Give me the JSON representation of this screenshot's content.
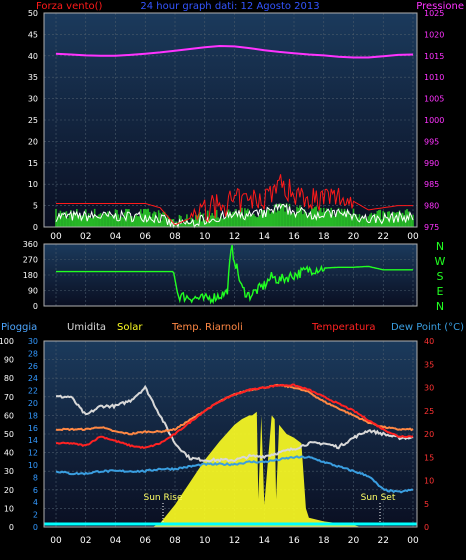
{
  "colors": {
    "background": "#000000",
    "plot_top": "#1b3a5c",
    "plot_bottom": "#0a0f22",
    "grid": "#4a5a6a",
    "border": "#b0b0b0",
    "wind": "#ff1a1a",
    "gust_bars": "#27b827",
    "wind_white": "#ffffff",
    "pressure": "#ff33ff",
    "direction": "#22ff22",
    "rain": "#00ffff",
    "humidity": "#d8d8d8",
    "solar": "#ffff22",
    "apparent_temp": "#ff8844",
    "temperature": "#ff2222",
    "dewpoint": "#3a9ee0",
    "top_title": "#3355ff",
    "tick_label": "#ffffff",
    "left_axis": "#4da6ff",
    "mid_axis": "#3399ff",
    "right_temp_axis": "#ff3333"
  },
  "top_panel": {
    "title": "24 hour graph dati: 12 Agosto 2013",
    "left_label": "Forza vento()",
    "right_label": "Pressione",
    "left_ticks": [
      "50",
      "45",
      "40",
      "35",
      "30",
      "25",
      "20",
      "15",
      "10",
      "5",
      "0"
    ],
    "right_ticks": [
      "1025",
      "1020",
      "1015",
      "1010",
      "1005",
      "1000",
      "995",
      "990",
      "985",
      "980",
      "975"
    ]
  },
  "direction_panel": {
    "ticks": [
      "360",
      "270",
      "180",
      "90",
      "0"
    ],
    "compass": [
      "N",
      "W",
      "S",
      "E",
      "N"
    ]
  },
  "bottom_panel": {
    "legend": {
      "rain": "Pioggia",
      "humidity": "Umidita",
      "solar": "Solar",
      "apparent": "Temp. Riarnoli",
      "temperature": "Temperatura",
      "dewpoint": "Dew Point (°C)"
    },
    "left_ticks": [
      "100",
      "90",
      "80",
      "70",
      "60",
      "50",
      "40",
      "30",
      "20",
      "10",
      "0"
    ],
    "mid_ticks": [
      "30",
      "28",
      "26",
      "24",
      "22",
      "20",
      "18",
      "16",
      "14",
      "12",
      "10",
      "8",
      "6",
      "4",
      "2",
      "0"
    ],
    "right_ticks": [
      "40",
      "35",
      "30",
      "25",
      "20",
      "15",
      "10",
      "5",
      "0"
    ],
    "sunrise": "Sun Rise",
    "sunset": "Sun Set"
  },
  "time_ticks": [
    "00",
    "02",
    "04",
    "06",
    "08",
    "10",
    "12",
    "14",
    "16",
    "18",
    "20",
    "22",
    "00"
  ],
  "chart_data": [
    {
      "type": "line",
      "title": "24 hour graph dati: 12 Agosto 2013",
      "x_unit": "hour",
      "xlim": [
        0,
        24
      ],
      "ylim_left": [
        0,
        50
      ],
      "ylim_right": [
        975,
        1025
      ],
      "grid": true,
      "series": [
        {
          "name": "Pressione",
          "axis": "right",
          "x": [
            0,
            1,
            2,
            3,
            4,
            5,
            6,
            7,
            8,
            9,
            10,
            11,
            12,
            13,
            14,
            15,
            16,
            17,
            18,
            19,
            20,
            21,
            22,
            23,
            24
          ],
          "values": [
            1015.5,
            1015.3,
            1015.1,
            1015.0,
            1015.0,
            1015.2,
            1015.5,
            1015.8,
            1016.2,
            1016.6,
            1017.0,
            1017.3,
            1017.2,
            1016.8,
            1016.3,
            1015.9,
            1015.6,
            1015.3,
            1015.1,
            1014.8,
            1014.6,
            1014.6,
            1014.9,
            1015.2,
            1015.3
          ]
        },
        {
          "name": "Forza vento",
          "x": [
            0,
            1,
            2,
            3,
            4,
            5,
            6,
            7,
            8,
            9,
            10,
            11,
            12,
            13,
            14,
            15,
            16,
            17,
            18,
            19,
            20,
            21,
            22,
            23,
            24
          ],
          "values": [
            5.5,
            5.5,
            5.5,
            5.5,
            5.5,
            5.5,
            5.5,
            4.5,
            0.5,
            2,
            4,
            5,
            6,
            6,
            7,
            10,
            8,
            7,
            6.5,
            7,
            6,
            4,
            4.5,
            5,
            5
          ]
        }
      ]
    },
    {
      "type": "line",
      "xlim": [
        0,
        24
      ],
      "ylim": [
        0,
        360
      ],
      "series": [
        {
          "x": [
            0,
            1,
            2,
            3,
            4,
            5,
            6,
            7,
            7.9,
            8.2,
            9,
            10,
            11,
            11.5,
            11.8,
            12.5,
            13,
            14,
            14.5,
            15,
            16,
            17,
            18,
            19,
            20,
            21,
            22,
            23,
            24
          ],
          "values": [
            200,
            200,
            200,
            200,
            200,
            200,
            200,
            200,
            200,
            60,
            50,
            40,
            60,
            80,
            340,
            100,
            60,
            120,
            170,
            150,
            180,
            210,
            220,
            225,
            225,
            230,
            210,
            210,
            210
          ]
        }
      ]
    },
    {
      "type": "line",
      "xlim": [
        0,
        24
      ],
      "ylim_left": [
        0,
        100
      ],
      "ylim_right": [
        0,
        40
      ],
      "series": [
        {
          "name": "Umidita",
          "x": [
            0,
            1,
            2,
            3,
            4,
            5,
            6,
            7,
            8,
            9,
            10,
            11,
            12,
            13,
            14,
            15,
            16,
            17,
            18,
            19,
            20,
            21,
            22,
            23,
            24
          ],
          "values": [
            70,
            70,
            60,
            65,
            65,
            68,
            75,
            60,
            45,
            37,
            36,
            36,
            36,
            38,
            38,
            40,
            42,
            45,
            45,
            43,
            48,
            52,
            50,
            48,
            48
          ]
        },
        {
          "name": "Temp. Riarnoli",
          "axis": "right",
          "x": [
            0,
            1,
            2,
            3,
            4,
            5,
            6,
            7,
            8,
            9,
            10,
            11,
            12,
            13,
            14,
            15,
            16,
            17,
            18,
            19,
            20,
            21,
            22,
            23,
            24
          ],
          "values": [
            21,
            21,
            21,
            21.5,
            20.5,
            20,
            20.5,
            20.5,
            21,
            23,
            25,
            27,
            28.5,
            29.5,
            30,
            30.5,
            30,
            29,
            27,
            25.5,
            24,
            22.5,
            21.5,
            21,
            21
          ]
        },
        {
          "name": "Temperatura",
          "axis": "right",
          "x": [
            0,
            1,
            2,
            3,
            4,
            5,
            6,
            7,
            8,
            9,
            10,
            11,
            12,
            13,
            14,
            15,
            16,
            17,
            18,
            19,
            20,
            21,
            22,
            23,
            24
          ],
          "values": [
            18,
            18,
            17.5,
            19.5,
            18.5,
            17.5,
            17,
            18,
            20,
            22.5,
            25,
            27,
            28.5,
            29.5,
            30,
            30.5,
            30.5,
            29.5,
            28,
            26.5,
            25,
            23,
            21,
            19.5,
            19.5
          ]
        },
        {
          "name": "Dew Point",
          "axis": "right",
          "x": [
            0,
            1,
            2,
            3,
            4,
            5,
            6,
            7,
            8,
            9,
            10,
            11,
            12,
            13,
            14,
            15,
            16,
            17,
            18,
            19,
            20,
            21,
            22,
            23,
            24
          ],
          "values": [
            12,
            11.5,
            11.5,
            12,
            12,
            12,
            12,
            12.5,
            12.5,
            13,
            13.5,
            13.5,
            13.5,
            14,
            14,
            14.5,
            15,
            15,
            14,
            13,
            12,
            11,
            8,
            7.5,
            8
          ]
        },
        {
          "name": "Solar",
          "axis": "left",
          "x": [
            6.5,
            7,
            8,
            9,
            10,
            11,
            12,
            12.5,
            13,
            13.2,
            13.5,
            13.6,
            13.8,
            14,
            14.5,
            14.7,
            14.8,
            15,
            15.5,
            16,
            16.5,
            16.8,
            17,
            18,
            19,
            20,
            20.5
          ],
          "values": [
            0,
            2,
            12,
            24,
            36,
            46,
            55,
            58,
            60,
            60,
            62,
            15,
            60,
            12,
            60,
            58,
            15,
            55,
            50,
            48,
            45,
            10,
            5,
            3,
            2,
            1,
            0
          ]
        }
      ]
    }
  ]
}
